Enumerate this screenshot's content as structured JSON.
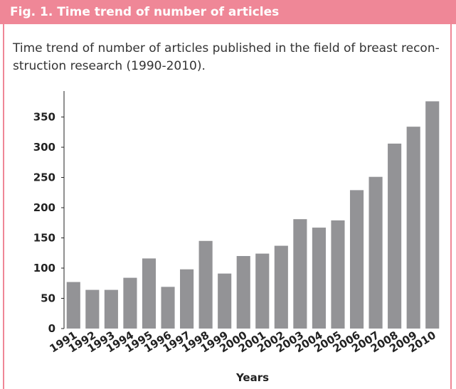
{
  "chart_data": {
    "type": "bar",
    "title": "Fig. 1. Time trend of number of articles",
    "caption": [
      "Time trend of number of articles published in the field of breast recon-",
      "struction research (1990-2010)."
    ],
    "x_label": "Years",
    "categories": [
      "1991",
      "1992",
      "1993",
      "1994",
      "1995",
      "1996",
      "1997",
      "1998",
      "1999",
      "2000",
      "2001",
      "2002",
      "2003",
      "2004",
      "2005",
      "2006",
      "2007",
      "2008",
      "2009",
      "2010"
    ],
    "values": [
      77,
      64,
      64,
      84,
      116,
      69,
      98,
      145,
      91,
      120,
      124,
      137,
      181,
      167,
      179,
      229,
      251,
      306,
      334,
      376
    ],
    "color": "#939396",
    "ylim": [
      0,
      393
    ],
    "yticks": [
      0,
      50,
      100,
      150,
      200,
      250,
      300,
      350
    ],
    "grid": false
  }
}
